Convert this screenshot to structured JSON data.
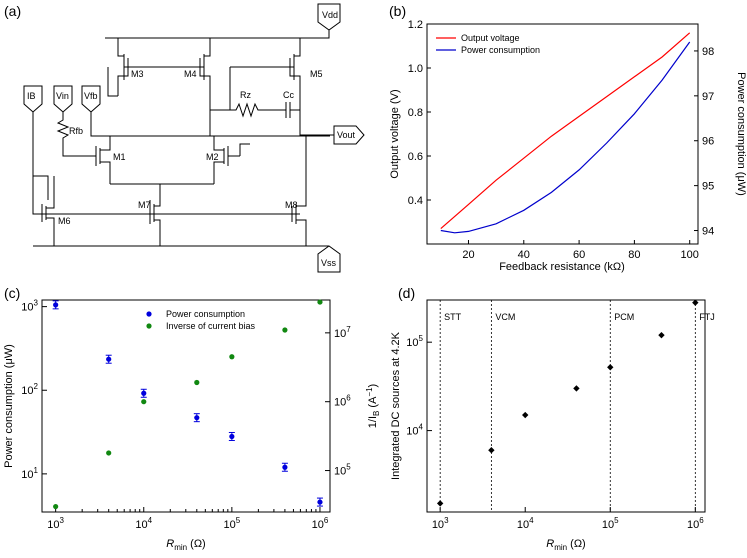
{
  "panels": {
    "a": {
      "label": "(a)"
    },
    "b": {
      "label": "(b)"
    },
    "c": {
      "label": "(c)"
    },
    "d": {
      "label": "(d)"
    }
  },
  "circuit": {
    "vdd": "Vdd",
    "vss": "Vss",
    "ib": "IB",
    "vin": "Vin",
    "vfb": "Vfb",
    "vout": "Vout",
    "rfb": "Rfb",
    "rz": "Rz",
    "cc": "Cc",
    "transistors": [
      "M1",
      "M2",
      "M3",
      "M4",
      "M5",
      "M6",
      "M7",
      "M8"
    ]
  },
  "chart_data": [
    {
      "panel": "b",
      "type": "line",
      "xlabel": "Feedback resistance (kΩ)",
      "ylabel": "Output voltage (V)",
      "ylabel_right": "Power consumption (μW)",
      "xlim": [
        5,
        103
      ],
      "ylim": [
        0.2,
        1.2
      ],
      "ylim_right": [
        93.7,
        98.6
      ],
      "xticks": [
        "20",
        "40",
        "60",
        "80",
        "100"
      ],
      "yticks": [
        "0.4",
        "0.6",
        "0.8",
        "1.0",
        "1.2"
      ],
      "yticks_right": [
        "94",
        "95",
        "96",
        "97",
        "98"
      ],
      "legend": [
        "Output voltage",
        "Power consumption"
      ],
      "colors": {
        "output": "#ff0000",
        "power": "#0000cc"
      },
      "series": [
        {
          "name": "Output voltage",
          "axis": "left",
          "x": [
            10,
            20,
            30,
            40,
            50,
            60,
            70,
            80,
            90,
            100
          ],
          "values": [
            0.27,
            0.38,
            0.49,
            0.59,
            0.69,
            0.78,
            0.87,
            0.96,
            1.05,
            1.16
          ]
        },
        {
          "name": "Power consumption",
          "axis": "right",
          "x": [
            10,
            15,
            20,
            30,
            40,
            50,
            60,
            70,
            80,
            90,
            100
          ],
          "values": [
            94.0,
            93.95,
            93.98,
            94.15,
            94.45,
            94.85,
            95.35,
            95.95,
            96.6,
            97.35,
            98.2
          ]
        }
      ]
    },
    {
      "panel": "c",
      "type": "scatter",
      "xlabel": "R",
      "xlabel_sub": "min",
      "xlabel_unit": " (Ω)",
      "ylabel": "Power consumption (μW)",
      "ylabel_right": "1/I",
      "ylabel_right_sub": "B",
      "ylabel_right_unit": " (A",
      "ylabel_right_sup": "−1",
      "ylabel_right_close": ")",
      "xscale": "log",
      "yscale": "log",
      "xlim": [
        700,
        1300000
      ],
      "ylim": [
        3.5,
        1200
      ],
      "ylim_right": [
        25000,
        30000000
      ],
      "xticks": [
        {
          "base": "10",
          "exp": "3"
        },
        {
          "base": "10",
          "exp": "4"
        },
        {
          "base": "10",
          "exp": "5"
        },
        {
          "base": "10",
          "exp": "6"
        }
      ],
      "yticks": [
        {
          "base": "10",
          "exp": "1"
        },
        {
          "base": "10",
          "exp": "2"
        },
        {
          "base": "10",
          "exp": "3"
        }
      ],
      "yticks_right": [
        {
          "base": "10",
          "exp": "5"
        },
        {
          "base": "10",
          "exp": "6"
        },
        {
          "base": "10",
          "exp": "7"
        }
      ],
      "legend": [
        "Power consumption",
        "Inverse of current bias"
      ],
      "colors": {
        "power": "#0000dd",
        "inverse": "#118811"
      },
      "series": [
        {
          "name": "Power consumption",
          "axis": "left",
          "x": [
            1000,
            4000,
            10000,
            40000,
            100000,
            400000,
            1000000
          ],
          "values": [
            1050,
            235,
            92,
            47,
            28,
            12,
            4.6
          ]
        },
        {
          "name": "Inverse of current bias",
          "axis": "right",
          "x": [
            1000,
            4000,
            10000,
            40000,
            100000,
            400000,
            1000000
          ],
          "values": [
            30000,
            180000,
            1000000,
            1900000,
            4500000,
            11000000,
            28000000
          ]
        }
      ]
    },
    {
      "panel": "d",
      "type": "scatter",
      "xlabel": "R",
      "xlabel_sub": "min",
      "xlabel_unit": " (Ω)",
      "ylabel": "Integrated DC sources at 4.2K",
      "xscale": "log",
      "yscale": "log",
      "xlim": [
        700,
        1300000
      ],
      "ylim": [
        1200,
        300000
      ],
      "xticks": [
        {
          "base": "10",
          "exp": "3"
        },
        {
          "base": "10",
          "exp": "4"
        },
        {
          "base": "10",
          "exp": "5"
        },
        {
          "base": "10",
          "exp": "6"
        }
      ],
      "yticks": [
        {
          "base": "10",
          "exp": "4"
        },
        {
          "base": "10",
          "exp": "5"
        }
      ],
      "regions": [
        {
          "label": "STT",
          "x": 1000
        },
        {
          "label": "VCM",
          "x": 4000
        },
        {
          "label": "PCM",
          "x": 100000
        },
        {
          "label": "FTJ",
          "x": 1000000
        }
      ],
      "series": [
        {
          "name": "Integrated DC sources",
          "x": [
            1000,
            4000,
            10000,
            40000,
            100000,
            400000,
            1000000
          ],
          "values": [
            1500,
            6000,
            15000,
            30000,
            52000,
            120000,
            280000
          ]
        }
      ]
    }
  ]
}
